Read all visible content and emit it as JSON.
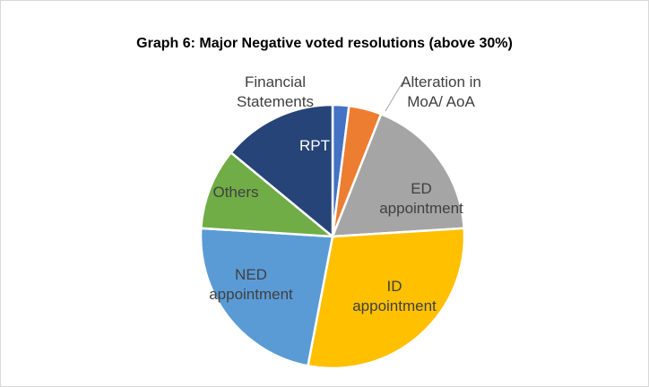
{
  "chart_data": {
    "type": "pie",
    "title": "Graph 6: Major Negative voted resolutions (above 30%)",
    "categories": [
      "Financial Statements",
      "Alteration in MoA/ AoA",
      "ED appointment",
      "ID appointment",
      "NED appointment",
      "Others",
      "RPT"
    ],
    "values": [
      2,
      4,
      18,
      29,
      23,
      10,
      14
    ],
    "colors": [
      "#4472c4",
      "#ed7d31",
      "#a5a5a5",
      "#ffc000",
      "#5b9bd5",
      "#70ad47",
      "#264478"
    ]
  }
}
